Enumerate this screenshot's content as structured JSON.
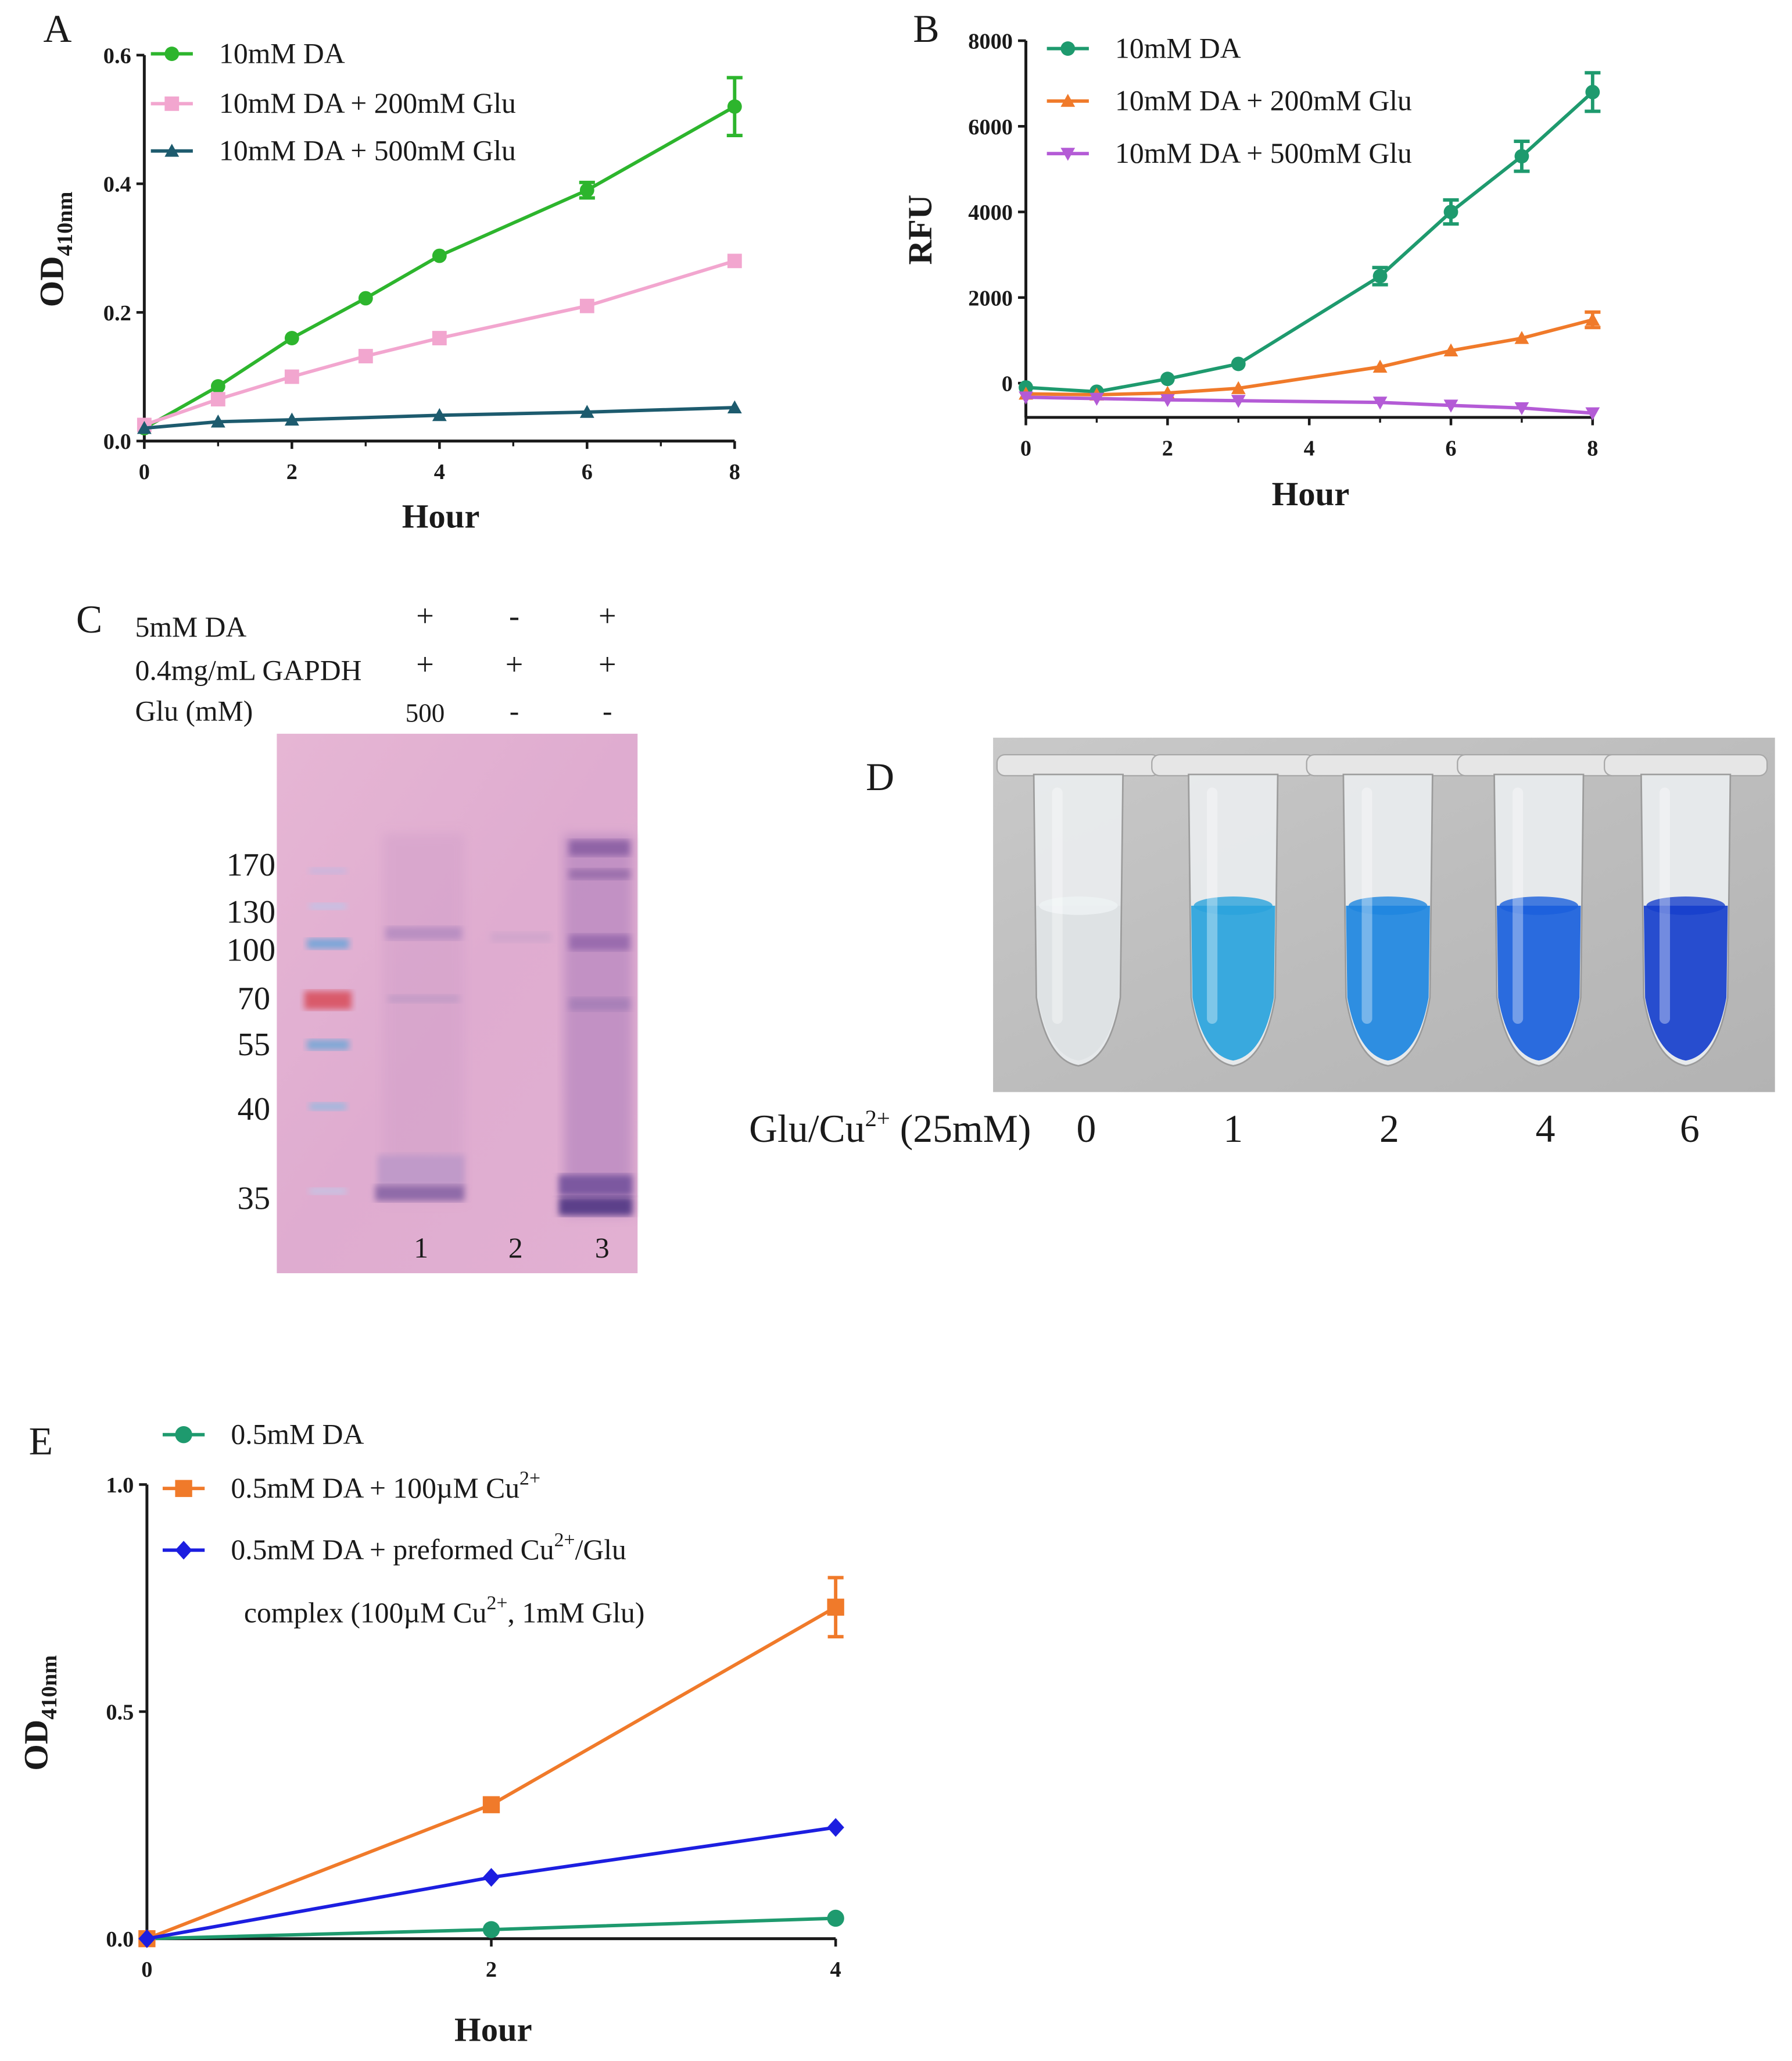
{
  "chart_data": [
    {
      "panel": "A",
      "type": "line",
      "xlabel": "Hour",
      "ylabel": "OD",
      "ylabel_sub": "410nm",
      "xlim": [
        0,
        8
      ],
      "ylim": [
        0,
        0.6
      ],
      "xticks": [
        "0",
        "2",
        "4",
        "6",
        "8"
      ],
      "yticks": [
        "0.0",
        "0.2",
        "0.4",
        "0.6"
      ],
      "legend": "top-left",
      "series": [
        {
          "name": "10mM DA",
          "color": "#2db52d",
          "marker": "circle",
          "x": [
            0,
            1,
            2,
            3,
            4,
            6,
            8
          ],
          "values": [
            0.02,
            0.085,
            0.16,
            0.222,
            0.288,
            0.39,
            0.52
          ],
          "err": [
            0,
            0,
            0,
            0,
            0,
            0.012,
            0.045
          ]
        },
        {
          "name": "10mM DA  + 200mM Glu",
          "color": "#f2a6cf",
          "marker": "square",
          "x": [
            0,
            1,
            2,
            3,
            4,
            6,
            8
          ],
          "values": [
            0.025,
            0.065,
            0.1,
            0.132,
            0.16,
            0.21,
            0.28
          ],
          "err": [
            0,
            0,
            0,
            0,
            0,
            0,
            0
          ]
        },
        {
          "name": "10mM DA  + 500mM Glu",
          "color": "#1d5b6e",
          "marker": "triangle",
          "x": [
            0,
            1,
            2,
            4,
            6,
            8
          ],
          "values": [
            0.02,
            0.03,
            0.033,
            0.04,
            0.045,
            0.052
          ],
          "err": [
            0,
            0,
            0,
            0,
            0,
            0
          ]
        }
      ]
    },
    {
      "panel": "B",
      "type": "line",
      "xlabel": "Hour",
      "ylabel": "RFU",
      "xlim": [
        0,
        8
      ],
      "ylim": [
        -800,
        8000
      ],
      "xticks": [
        "0",
        "2",
        "4",
        "6",
        "8"
      ],
      "yticks": [
        "0",
        "2000",
        "4000",
        "6000",
        "8000"
      ],
      "legend": "top-left",
      "series": [
        {
          "name": "10mM DA",
          "color": "#1e9a6e",
          "marker": "circle",
          "x": [
            0,
            1,
            2,
            3,
            5,
            6,
            7,
            8
          ],
          "values": [
            -100,
            -200,
            100,
            450,
            2500,
            4000,
            5300,
            6800
          ],
          "err": [
            0,
            0,
            0,
            0,
            200,
            280,
            350,
            450
          ]
        },
        {
          "name": "10mM DA  + 200mM Glu",
          "color": "#f07a2a",
          "marker": "triangle",
          "x": [
            0,
            1,
            2,
            3,
            5,
            6,
            7,
            8
          ],
          "values": [
            -250,
            -270,
            -230,
            -120,
            380,
            760,
            1050,
            1480
          ],
          "err": [
            0,
            0,
            0,
            0,
            0,
            0,
            0,
            180
          ]
        },
        {
          "name": "10mM DA  + 500mM Glu",
          "color": "#b45bd6",
          "marker": "triangle-down",
          "x": [
            0,
            1,
            2,
            3,
            5,
            6,
            7,
            8
          ],
          "values": [
            -330,
            -360,
            -390,
            -410,
            -450,
            -520,
            -580,
            -700
          ],
          "err": [
            0,
            0,
            0,
            0,
            0,
            0,
            0,
            0
          ]
        }
      ]
    },
    {
      "panel": "E",
      "type": "line",
      "xlabel": "Hour",
      "ylabel": "OD",
      "ylabel_sub": "410nm",
      "xlim": [
        0,
        4
      ],
      "ylim": [
        0,
        1.0
      ],
      "xticks": [
        "0",
        "2",
        "4"
      ],
      "yticks": [
        "0.0",
        "0.5",
        "1.0"
      ],
      "legend": "top-left",
      "series": [
        {
          "name": "0.5mM DA",
          "color": "#1e9a6e",
          "marker": "circle",
          "x": [
            0,
            2,
            4
          ],
          "values": [
            0.0,
            0.02,
            0.045
          ],
          "err": [
            0,
            0,
            0
          ]
        },
        {
          "name": "0.5mM DA + 100µM Cu",
          "sup": "2+",
          "color": "#f07a2a",
          "marker": "square",
          "x": [
            0,
            2,
            4
          ],
          "values": [
            0.0,
            0.295,
            0.73
          ],
          "err": [
            0,
            0.01,
            0.065
          ]
        },
        {
          "name": "0.5mM DA + preformed Cu",
          "sup": "2+",
          "after": "/Glu",
          "color": "#1c1ee0",
          "marker": "diamond",
          "x": [
            0,
            2,
            4
          ],
          "values": [
            0.0,
            0.135,
            0.245
          ],
          "err": [
            0,
            0,
            0
          ]
        }
      ],
      "legend_extra": {
        "pre": "complex (100µM Cu",
        "sup": "2+",
        "post": ", 1mM Glu)"
      }
    }
  ],
  "panels": {
    "A": "A",
    "B": "B",
    "C": "C",
    "D": "D",
    "E": "E"
  },
  "gel": {
    "row_labels": [
      "5mM DA",
      "0.4mg/mL  GAPDH",
      "Glu (mM)"
    ],
    "row_values": [
      [
        "+",
        "-",
        "+"
      ],
      [
        "+",
        "+",
        "+"
      ],
      [
        "500",
        "-",
        "-"
      ]
    ],
    "markers": [
      "170",
      "130",
      "100",
      "70",
      "55",
      "40",
      "35"
    ],
    "lanes": [
      "1",
      "2",
      "3"
    ]
  },
  "tubes": {
    "label": "Glu/Cu",
    "label_sup": "2+",
    "label_rest": " (25mM)",
    "values": [
      "0",
      "1",
      "2",
      "4",
      "6"
    ],
    "colors": [
      "#d9dde0",
      "#2aa3dc",
      "#1e86e0",
      "#1a5fdc",
      "#173fcc"
    ]
  }
}
